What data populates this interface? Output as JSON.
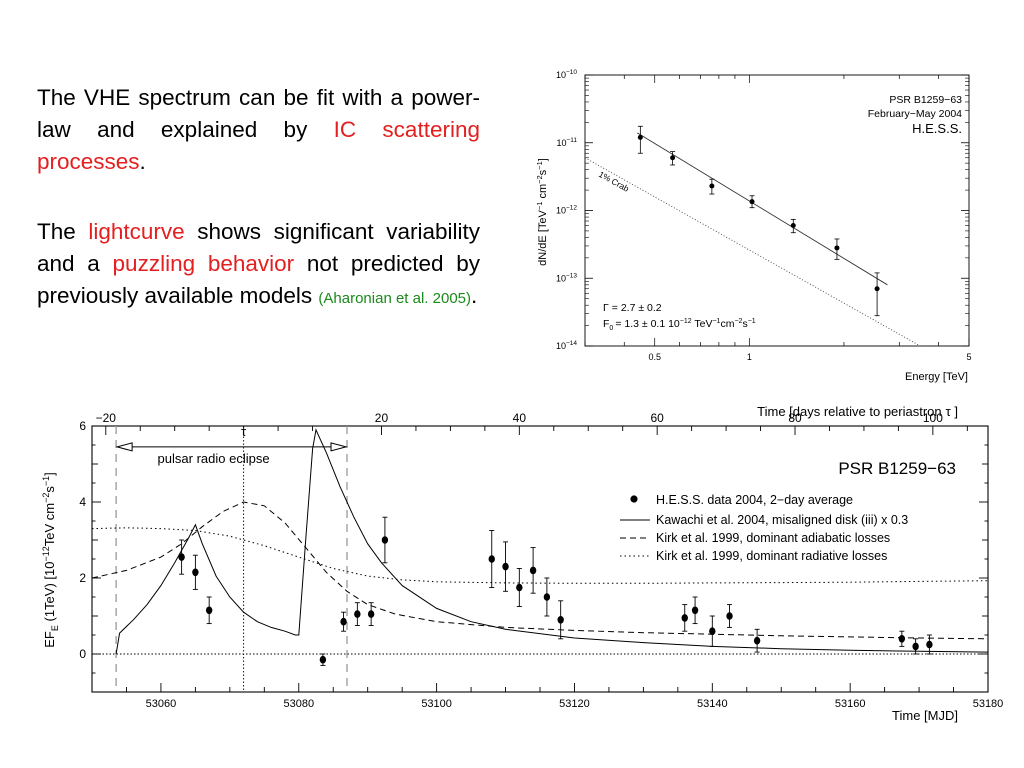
{
  "text": {
    "p1_a": "The VHE spectrum can be fit with a power-law and explained by ",
    "p1_red": "IC scattering processes",
    "p1_end": ".",
    "p2_a": "The ",
    "p2_red1": "lightcurve",
    "p2_b": " shows significant variability and a ",
    "p2_red2": "puzzling behavior",
    "p2_c": " not predicted by previously available models ",
    "p2_ref": "(Aharonian et al. 2005)",
    "p2_end": "."
  },
  "colors": {
    "highlight_red": "#e41f1f",
    "reference_green": "#1a8a1a"
  },
  "chart_data": [
    {
      "type": "scatter",
      "name": "spectrum",
      "x_scale": "log",
      "y_scale": "log",
      "xlim": [
        0.3,
        5
      ],
      "ylim": [
        1e-14,
        1e-10
      ],
      "xlabel": "Energy [TeV]",
      "ylabel_parts": [
        "dN/dE [TeV",
        "−1",
        " cm",
        "−2",
        "s",
        "−1",
        "]"
      ],
      "x_tick_labels": [
        "0.5",
        "1",
        "5"
      ],
      "y_tick_bases": [
        "10",
        "10",
        "10",
        "10",
        "10"
      ],
      "y_tick_exps": [
        "−10",
        "−11",
        "−12",
        "−13",
        "−14"
      ],
      "title_lines": [
        "PSR B1259−63",
        "February−May 2004",
        "H.E.S.S."
      ],
      "crab_label": "1% Crab",
      "fit_text": {
        "gamma_symbol": "Γ",
        "gamma_value": "= 2.7 ± 0.2",
        "f0_symbol": "F",
        "f0_sub": "0",
        "f0_value": "= 1.3 ± 0.1  10",
        "f0_exp": "−12",
        "f0_unit": " TeV",
        "f0_unit_exp1": "−1",
        "f0_unit_mid": "cm",
        "f0_unit_exp2": "−2",
        "f0_unit_s": "s",
        "f0_unit_exp3": "−1"
      },
      "points": [
        {
          "x": 0.45,
          "y": 1.2e-11,
          "ylo": 7e-12,
          "yhi": 1.75e-11
        },
        {
          "x": 0.57,
          "y": 6e-12,
          "ylo": 4.7e-12,
          "yhi": 7.4e-12
        },
        {
          "x": 0.76,
          "y": 2.3e-12,
          "ylo": 1.75e-12,
          "yhi": 2.9e-12
        },
        {
          "x": 1.02,
          "y": 1.35e-12,
          "ylo": 1.1e-12,
          "yhi": 1.65e-12
        },
        {
          "x": 1.38,
          "y": 6e-13,
          "ylo": 4.7e-13,
          "yhi": 7.4e-13
        },
        {
          "x": 1.9,
          "y": 2.8e-13,
          "ylo": 1.9e-13,
          "yhi": 3.8e-13
        },
        {
          "x": 2.55,
          "y": 7e-14,
          "ylo": 2.8e-14,
          "yhi": 1.2e-13
        }
      ],
      "fit_line": {
        "x": [
          0.44,
          2.75
        ],
        "y": [
          1.4e-11,
          8e-14
        ]
      },
      "crab_line": {
        "x": [
          0.3,
          3.5
        ],
        "y": [
          6e-12,
          1e-14
        ]
      }
    },
    {
      "type": "line",
      "name": "lightcurve",
      "xlabel": "Time [MJD]",
      "top_xlabel": "Time [days relative to periastron",
      "top_xlabel_symbol": "τ",
      "top_xlabel_end": " ]",
      "tau_label": "τ",
      "eclipse_label": "pulsar radio eclipse",
      "title": "PSR B1259−63",
      "ylabel": "EF",
      "ylabel_sub": "E",
      "ylabel_rest": " (1TeV) [10",
      "ylabel_exp1": "−12",
      "ylabel_rest2": "TeV cm",
      "ylabel_exp2": "−2",
      "ylabel_s": "s",
      "ylabel_exp3": "−1",
      "ylabel_end": "]",
      "xlim": [
        53050,
        53180
      ],
      "ylim": [
        -1,
        6
      ],
      "periastron_mjd": 53072,
      "x_ticks": [
        53060,
        53080,
        53100,
        53120,
        53140,
        53160,
        53180
      ],
      "x_tick_labels": [
        "53060",
        "53080",
        "53100",
        "53120",
        "53140",
        "53160",
        "53180"
      ],
      "y_ticks": [
        0,
        2,
        4,
        6
      ],
      "y_tick_labels": [
        "0",
        "2",
        "4",
        "6"
      ],
      "top_ticks": [
        -20,
        20,
        40,
        60,
        80,
        100
      ],
      "top_tick_labels": [
        "−20",
        "20",
        "40",
        "60",
        "80",
        "100"
      ],
      "eclipse_range": [
        53053.5,
        53087
      ],
      "legend": [
        {
          "style": "marker",
          "label": "H.E.S.S. data 2004, 2−day average"
        },
        {
          "style": "solid",
          "label": "Kawachi et al. 2004, misaligned disk (iii) x 0.3"
        },
        {
          "style": "dashed",
          "label": "Kirk et al. 1999, dominant adiabatic losses"
        },
        {
          "style": "dotted",
          "label": "Kirk et al. 1999, dominant radiative losses"
        }
      ],
      "points": [
        {
          "x": 53063,
          "y": 2.55,
          "err": 0.45
        },
        {
          "x": 53065,
          "y": 2.15,
          "err": 0.45
        },
        {
          "x": 53067,
          "y": 1.15,
          "err": 0.35
        },
        {
          "x": 53083.5,
          "y": -0.15,
          "err": 0.15
        },
        {
          "x": 53086.5,
          "y": 0.85,
          "err": 0.25
        },
        {
          "x": 53088.5,
          "y": 1.05,
          "err": 0.3
        },
        {
          "x": 53090.5,
          "y": 1.05,
          "err": 0.3
        },
        {
          "x": 53092.5,
          "y": 3.0,
          "err": 0.6
        },
        {
          "x": 53108,
          "y": 2.5,
          "err": 0.75
        },
        {
          "x": 53110,
          "y": 2.3,
          "err": 0.65
        },
        {
          "x": 53112,
          "y": 1.75,
          "err": 0.5
        },
        {
          "x": 53114,
          "y": 2.2,
          "err": 0.6
        },
        {
          "x": 53116,
          "y": 1.5,
          "err": 0.5
        },
        {
          "x": 53118,
          "y": 0.9,
          "err": 0.5
        },
        {
          "x": 53136,
          "y": 0.95,
          "err": 0.35
        },
        {
          "x": 53137.5,
          "y": 1.15,
          "err": 0.35
        },
        {
          "x": 53140,
          "y": 0.6,
          "err": 0.4
        },
        {
          "x": 53142.5,
          "y": 1.0,
          "err": 0.3
        },
        {
          "x": 53146.5,
          "y": 0.35,
          "err": 0.3
        },
        {
          "x": 53167.5,
          "y": 0.4,
          "err": 0.2
        },
        {
          "x": 53169.5,
          "y": 0.2,
          "err": 0.2
        },
        {
          "x": 53171.5,
          "y": 0.25,
          "err": 0.25
        }
      ],
      "series": [
        {
          "name": "Kawachi et al. 2004",
          "style": "solid",
          "x": [
            53053.5,
            53054,
            53056,
            53058,
            53060,
            53062,
            53064,
            53065,
            53066,
            53068,
            53070,
            53072,
            53074,
            53076,
            53078,
            53079.5,
            53080,
            53081,
            53082,
            53082.5,
            53083,
            53084,
            53085,
            53086,
            53088,
            53090,
            53092,
            53095,
            53100,
            53105,
            53110,
            53120,
            53130,
            53140,
            53150,
            53160,
            53170,
            53180
          ],
          "y": [
            0.0,
            0.55,
            0.9,
            1.3,
            1.8,
            2.4,
            3.05,
            3.4,
            2.9,
            2.05,
            1.5,
            1.1,
            0.85,
            0.7,
            0.6,
            0.5,
            0.5,
            3.0,
            5.4,
            5.9,
            5.7,
            5.3,
            4.85,
            4.4,
            3.6,
            2.9,
            2.4,
            1.8,
            1.2,
            0.85,
            0.65,
            0.42,
            0.3,
            0.2,
            0.14,
            0.1,
            0.07,
            0.05
          ]
        },
        {
          "name": "Kirk et al. 1999, adiabatic",
          "style": "dashed",
          "x": [
            53050,
            53055,
            53060,
            53063,
            53066,
            53069,
            53072,
            53075,
            53078,
            53081,
            53084,
            53087,
            53090,
            53094,
            53100,
            53110,
            53120,
            53130,
            53140,
            53150,
            53160,
            53170,
            53180
          ],
          "y": [
            2.0,
            2.2,
            2.55,
            2.9,
            3.35,
            3.75,
            4.0,
            3.9,
            3.45,
            2.8,
            2.15,
            1.65,
            1.3,
            1.05,
            0.85,
            0.7,
            0.62,
            0.56,
            0.52,
            0.48,
            0.45,
            0.42,
            0.4
          ]
        },
        {
          "name": "Kirk et al. 1999, radiative",
          "style": "dotted",
          "x": [
            53050,
            53055,
            53060,
            53065,
            53070,
            53075,
            53080,
            53085,
            53090,
            53095,
            53100,
            53110,
            53120,
            53130,
            53140,
            53150,
            53160,
            53170,
            53180
          ],
          "y": [
            3.3,
            3.32,
            3.3,
            3.25,
            3.1,
            2.85,
            2.55,
            2.25,
            2.05,
            1.95,
            1.9,
            1.87,
            1.86,
            1.86,
            1.87,
            1.88,
            1.89,
            1.91,
            1.93
          ]
        }
      ]
    }
  ]
}
